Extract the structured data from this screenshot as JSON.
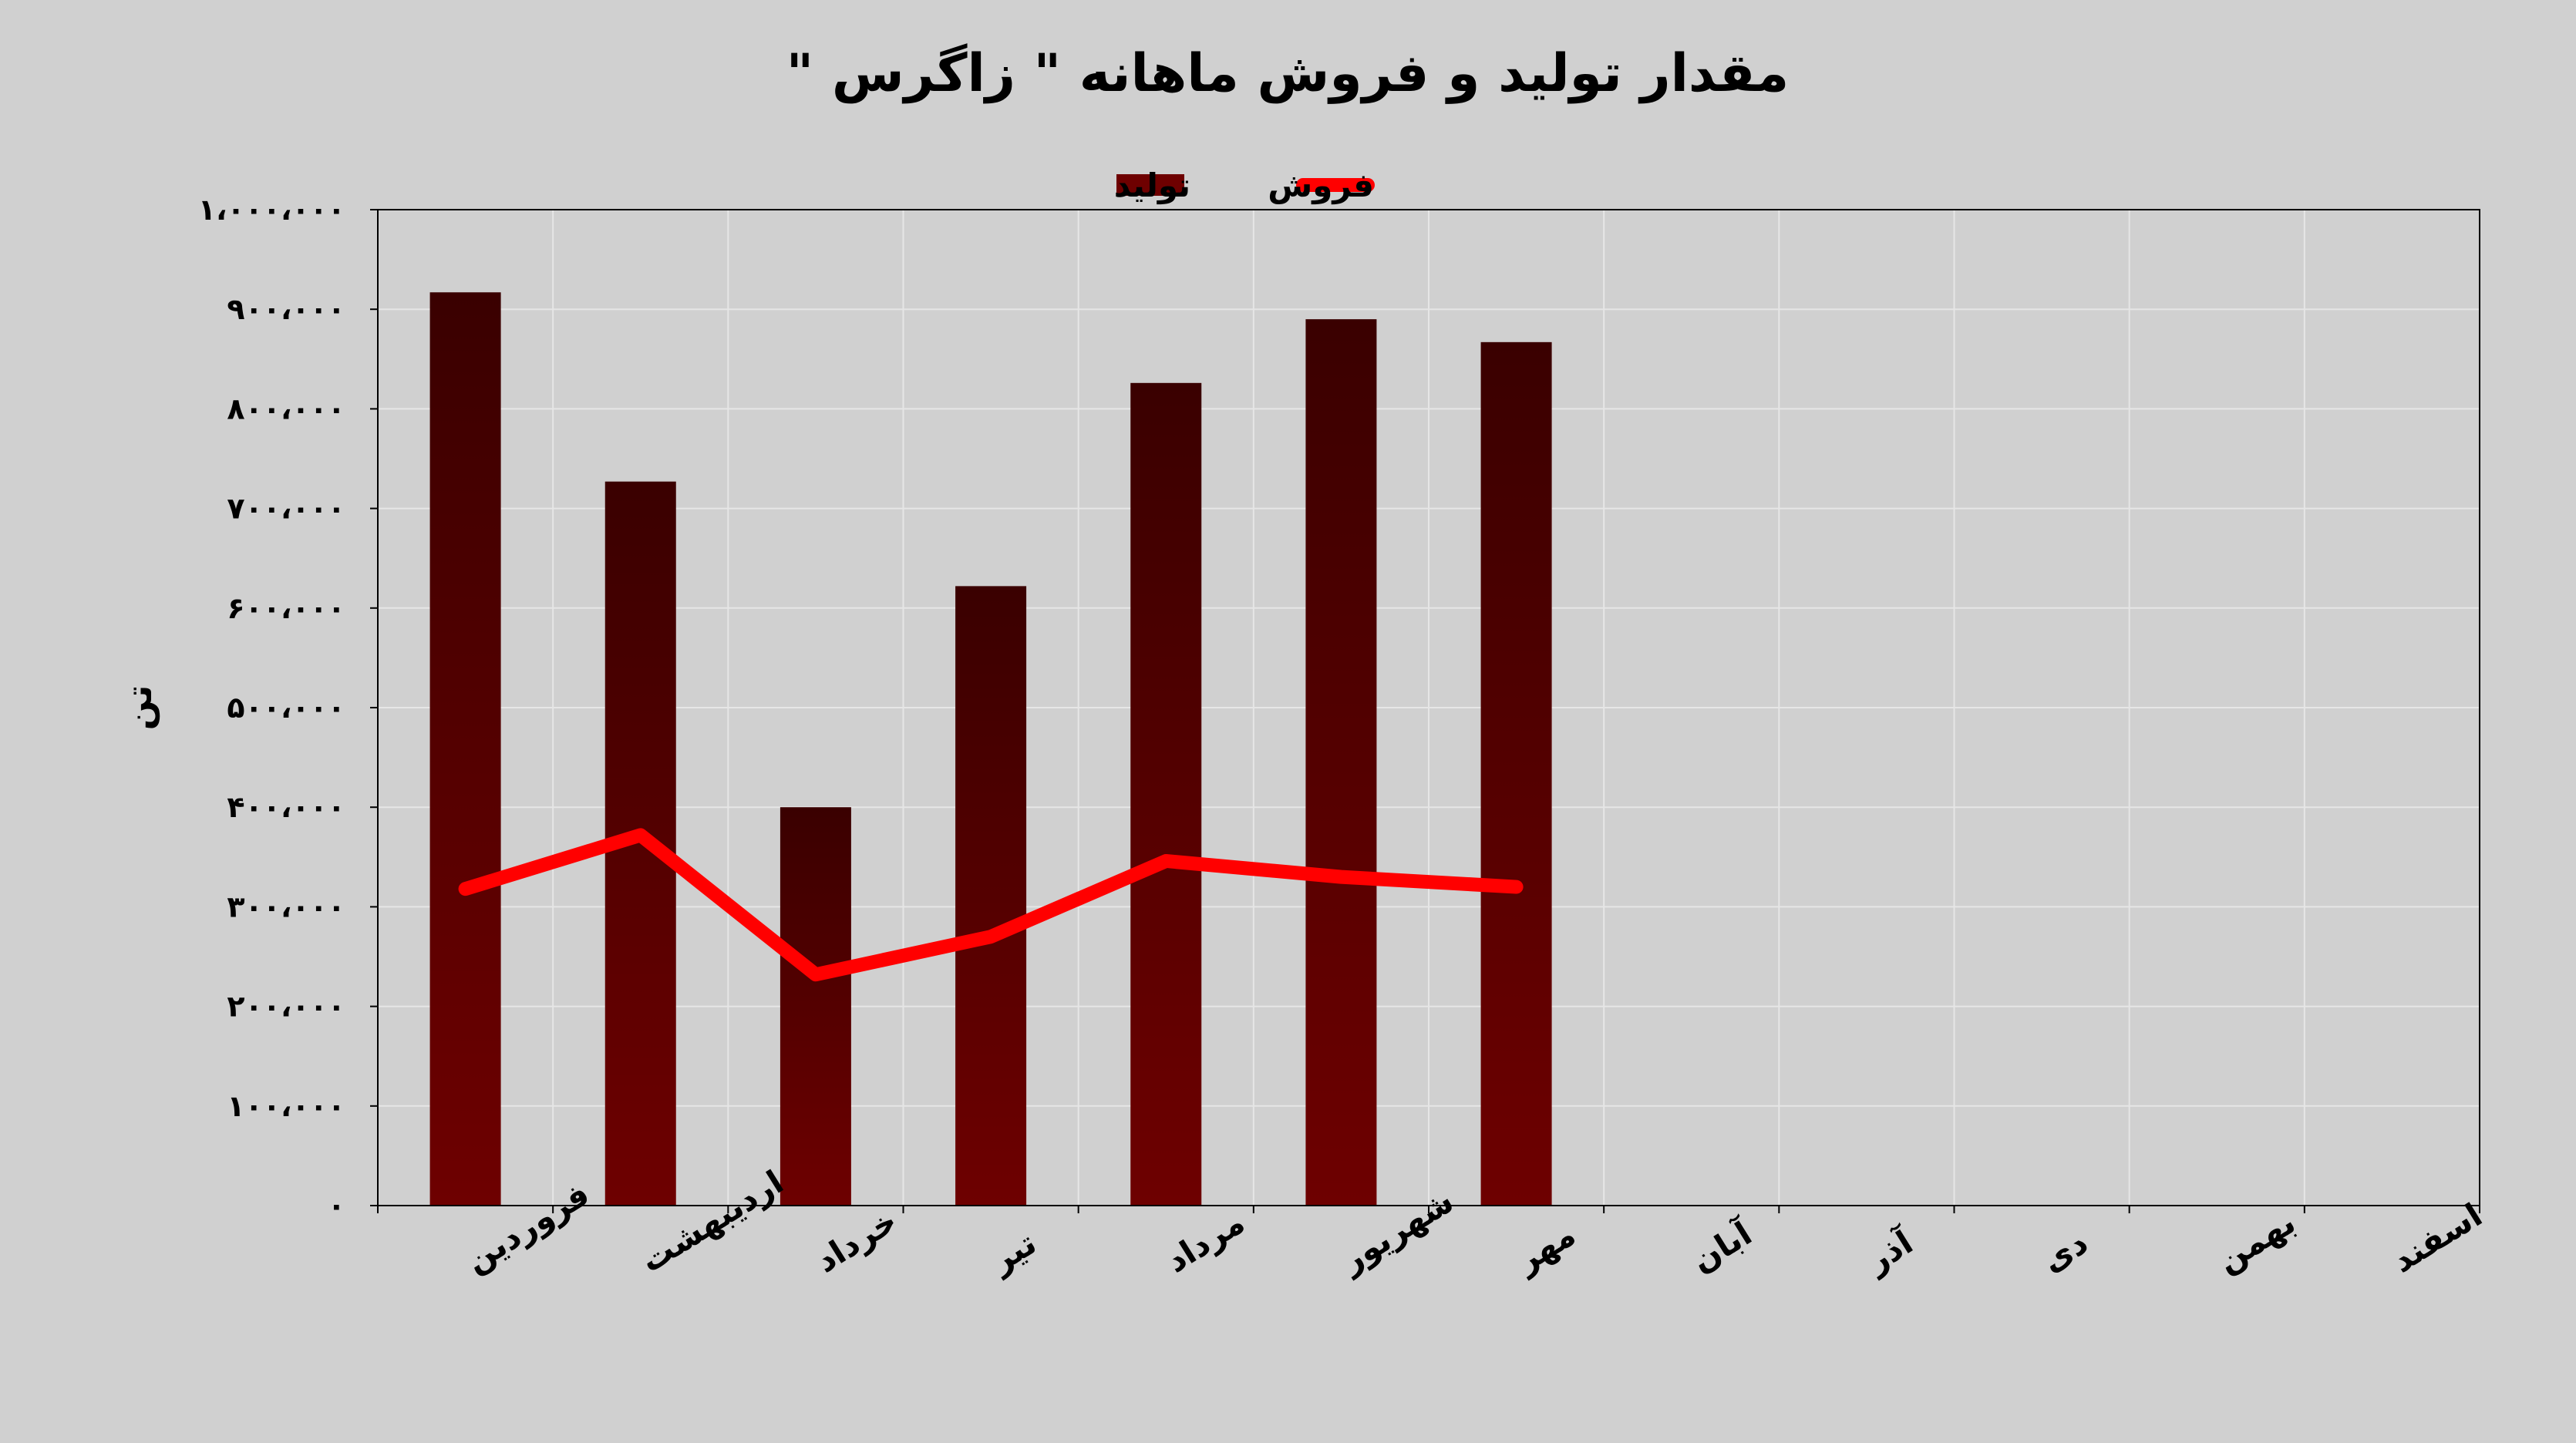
{
  "chart_data": {
    "type": "bar",
    "title": "مقدار تولید و فروش ماهانه \" زاگرس \"",
    "ylabel": "تن",
    "xlabel": "",
    "ylim": [
      0,
      1000000
    ],
    "yticks": [
      0,
      100000,
      200000,
      300000,
      400000,
      500000,
      600000,
      700000,
      800000,
      900000,
      1000000
    ],
    "ytick_labels": [
      "۰",
      "۱۰۰،۰۰۰",
      "۲۰۰،۰۰۰",
      "۳۰۰،۰۰۰",
      "۴۰۰،۰۰۰",
      "۵۰۰،۰۰۰",
      "۶۰۰،۰۰۰",
      "۷۰۰،۰۰۰",
      "۸۰۰،۰۰۰",
      "۹۰۰،۰۰۰",
      "۱،۰۰۰،۰۰۰"
    ],
    "categories": [
      "فروردین",
      "اردیبهشت",
      "خرداد",
      "تیر",
      "مرداد",
      "شهریور",
      "مهر",
      "آبان",
      "آذر",
      "دی",
      "بهمن",
      "اسفند"
    ],
    "grid": true,
    "legend_position": "top-center",
    "series": [
      {
        "name": "تولید",
        "type": "bar",
        "color": "#6e0000",
        "color_top": "#3a0000",
        "values": [
          917000,
          727000,
          400000,
          622000,
          826000,
          890000,
          867000,
          null,
          null,
          null,
          null,
          null
        ]
      },
      {
        "name": "فروش",
        "type": "line",
        "color": "#ff0000",
        "values": [
          318000,
          372000,
          232000,
          270000,
          346000,
          330000,
          320000,
          null,
          null,
          null,
          null,
          null
        ]
      }
    ]
  }
}
